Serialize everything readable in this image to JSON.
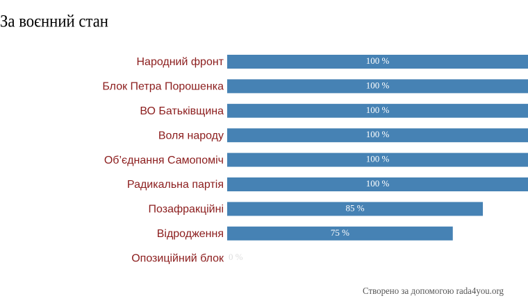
{
  "chart_data": {
    "type": "barh",
    "title": "За воєнний стан",
    "categories": [
      "Народний фронт",
      "Блок Петра Порошенка",
      "ВО Батьківщина",
      "Воля народу",
      "Об’єднання Самопоміч",
      "Радикальна партія",
      "Позафракційні",
      "Відродження",
      "Опозиційний блок"
    ],
    "values": [
      100,
      100,
      100,
      100,
      100,
      100,
      85,
      75,
      0
    ],
    "value_labels": [
      "100 %",
      "100 %",
      "100 %",
      "100 %",
      "100 %",
      "100 %",
      "85 %",
      "75 %",
      "0 %"
    ],
    "color": "#4682b4",
    "xlim": [
      0,
      100
    ],
    "footer": "Створено за допомогою rada4you.org"
  }
}
